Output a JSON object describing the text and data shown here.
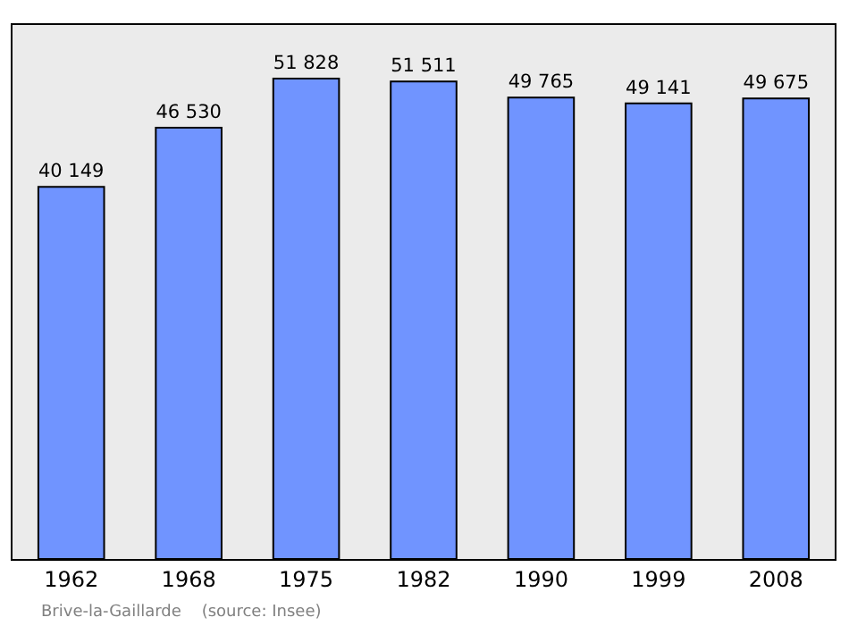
{
  "chart_data": {
    "type": "bar",
    "categories": [
      "1962",
      "1968",
      "1975",
      "1982",
      "1990",
      "1999",
      "2008"
    ],
    "values": [
      40149,
      46530,
      51828,
      51511,
      49765,
      49141,
      49675
    ],
    "value_labels": [
      "40 149",
      "46 530",
      "51 828",
      "51 511",
      "49 765",
      "49 141",
      "49 675"
    ],
    "color": "#7094ff",
    "ylim": [
      0,
      57600
    ],
    "annotations": [
      "Brive-la-Gaillarde    (source: Insee)"
    ]
  }
}
